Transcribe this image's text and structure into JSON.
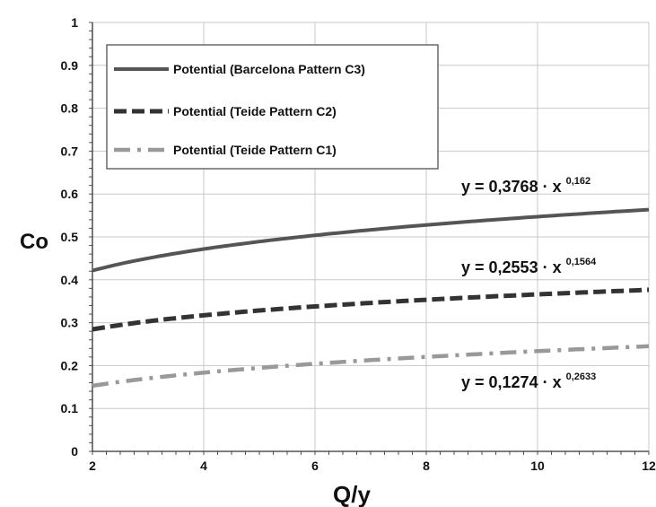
{
  "chart_data": {
    "type": "line",
    "xlabel": "Q/y",
    "ylabel": "Co",
    "xlim": [
      2,
      12
    ],
    "ylim": [
      0,
      1
    ],
    "x_ticks": [
      "2",
      "4",
      "6",
      "8",
      "10",
      "12"
    ],
    "y_ticks": [
      "0",
      "0.1",
      "0.2",
      "0.3",
      "0.4",
      "0.5",
      "0.6",
      "0.7",
      "0.8",
      "0.9",
      "1"
    ],
    "grid": true,
    "legend_position": "top-left",
    "series": [
      {
        "name": "Potential (Barcelona Pattern C3)",
        "coefficient": 0.3768,
        "exponent": 0.162,
        "style": "solid",
        "color": "#555555",
        "equation_base": "y = 0,3768 · x",
        "equation_exp": "0,162",
        "x": [
          2,
          3,
          4,
          5,
          6,
          7,
          8,
          9,
          10,
          11,
          12
        ],
        "values": [
          0.42,
          0.45,
          0.47,
          0.49,
          0.5,
          0.52,
          0.53,
          0.54,
          0.55,
          0.56,
          0.56
        ]
      },
      {
        "name": "Potential (Teide Pattern C2)",
        "coefficient": 0.2553,
        "exponent": 0.1564,
        "style": "dashed",
        "color": "#333333",
        "equation_base": "y = 0,2553 · x",
        "equation_exp": "0,1564",
        "x": [
          2,
          3,
          4,
          5,
          6,
          7,
          8,
          9,
          10,
          11,
          12
        ],
        "values": [
          0.29,
          0.3,
          0.32,
          0.33,
          0.34,
          0.35,
          0.35,
          0.36,
          0.37,
          0.37,
          0.38
        ]
      },
      {
        "name": "Potential (Teide Pattern C1)",
        "coefficient": 0.1274,
        "exponent": 0.2633,
        "style": "dash-dot",
        "color": "#999999",
        "equation_base": "y = 0,1274 · x",
        "equation_exp": "0,2633",
        "x": [
          2,
          3,
          4,
          5,
          6,
          7,
          8,
          9,
          10,
          11,
          12
        ],
        "values": [
          0.15,
          0.17,
          0.18,
          0.19,
          0.2,
          0.21,
          0.22,
          0.23,
          0.23,
          0.24,
          0.25
        ]
      }
    ]
  }
}
